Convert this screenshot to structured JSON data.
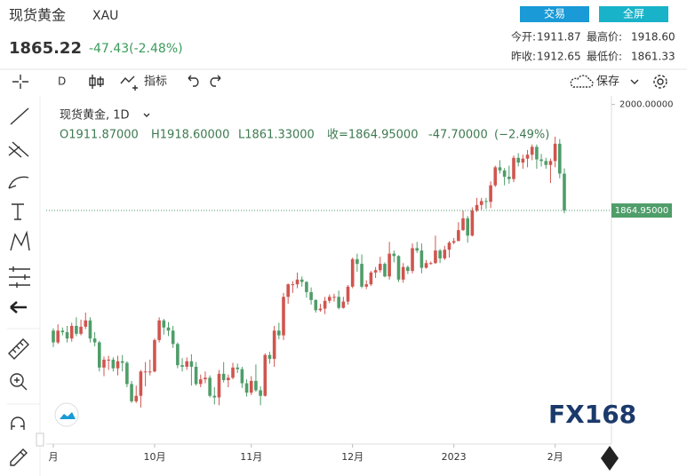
{
  "header": {
    "name": "现货黄金",
    "symbol": "XAU",
    "price": "1865.22",
    "change": "-47.43(-2.48%)",
    "buttons": [
      "交易",
      "全屏"
    ],
    "stats": [
      {
        "label": "今开:",
        "value": "1911.87"
      },
      {
        "label": "最高价:",
        "value": "1918.60"
      },
      {
        "label": "昨收:",
        "value": "1912.65"
      },
      {
        "label": "最低价:",
        "value": "1861.33"
      }
    ]
  },
  "toolbar": {
    "interval": "D",
    "indicators": "指标",
    "save": "保存"
  },
  "chart_data": {
    "type": "candlestick",
    "legend_title": "现货黄金, 1D",
    "legend_values": [
      "O1911.87000",
      "H1918.60000",
      "L1861.33000",
      "收=1864.95000",
      "-47.70000",
      "(−2.49%)"
    ],
    "watermark": "FX168",
    "categories": [
      "月",
      null,
      null,
      null,
      null,
      null,
      null,
      null,
      null,
      null,
      null,
      null,
      null,
      null,
      null,
      null,
      null,
      null,
      null,
      null,
      null,
      null,
      "10月",
      null,
      null,
      null,
      null,
      null,
      null,
      null,
      null,
      null,
      null,
      null,
      null,
      null,
      null,
      null,
      null,
      null,
      null,
      null,
      null,
      "11月",
      null,
      null,
      null,
      null,
      null,
      null,
      null,
      null,
      null,
      null,
      null,
      null,
      null,
      null,
      null,
      null,
      null,
      null,
      null,
      null,
      null,
      "12月",
      null,
      null,
      null,
      null,
      null,
      null,
      null,
      null,
      null,
      null,
      null,
      null,
      null,
      null,
      null,
      null,
      null,
      null,
      null,
      null,
      null,
      "2023",
      null,
      null,
      null,
      null,
      null,
      null,
      null,
      null,
      null,
      null,
      null,
      null,
      null,
      null,
      null,
      null,
      null,
      null,
      null,
      null,
      null,
      "2月",
      null,
      null
    ],
    "open": [
      1712,
      1697,
      1712,
      1710,
      1702,
      1718,
      1708,
      1717,
      1725,
      1702,
      1697,
      1665,
      1675,
      1675,
      1664,
      1673,
      1671,
      1644,
      1622,
      1629,
      1660,
      1660,
      1660,
      1700,
      1725,
      1716,
      1712,
      1695,
      1668,
      1666,
      1673,
      1666,
      1644,
      1650,
      1652,
      1629,
      1627,
      1657,
      1649,
      1652,
      1665,
      1663,
      1645,
      1633,
      1648,
      1636,
      1629,
      1681,
      1676,
      1712,
      1706,
      1755,
      1771,
      1771,
      1777,
      1774,
      1761,
      1751,
      1738,
      1740,
      1750,
      1755,
      1755,
      1741,
      1749,
      1768,
      1803,
      1797,
      1768,
      1771,
      1786,
      1789,
      1797,
      1781,
      1810,
      1807,
      1777,
      1793,
      1788,
      1817,
      1814,
      1792,
      1798,
      1798,
      1814,
      1804,
      1815,
      1824,
      1826,
      1840,
      1855,
      1833,
      1865,
      1872,
      1877,
      1876,
      1897,
      1920,
      1916,
      1908,
      1905,
      1932,
      1926,
      1931,
      1936,
      1946,
      1930,
      1928,
      1923,
      1928,
      1950,
      1911.87
    ],
    "high": [
      1715,
      1720,
      1716,
      1718,
      1722,
      1729,
      1726,
      1735,
      1729,
      1710,
      1699,
      1679,
      1680,
      1678,
      1680,
      1681,
      1673,
      1648,
      1642,
      1662,
      1672,
      1675,
      1702,
      1729,
      1727,
      1723,
      1718,
      1697,
      1677,
      1678,
      1682,
      1672,
      1656,
      1660,
      1655,
      1640,
      1662,
      1672,
      1656,
      1671,
      1670,
      1666,
      1650,
      1654,
      1669,
      1641,
      1683,
      1685,
      1718,
      1722,
      1760,
      1772,
      1775,
      1786,
      1781,
      1775,
      1767,
      1752,
      1746,
      1755,
      1758,
      1759,
      1763,
      1755,
      1770,
      1805,
      1810,
      1809,
      1776,
      1788,
      1793,
      1806,
      1799,
      1825,
      1814,
      1808,
      1798,
      1795,
      1823,
      1825,
      1823,
      1802,
      1800,
      1833,
      1816,
      1820,
      1826,
      1830,
      1850,
      1865,
      1858,
      1869,
      1881,
      1881,
      1881,
      1902,
      1922,
      1929,
      1919,
      1922,
      1935,
      1938,
      1936,
      1942,
      1949,
      1949,
      1937,
      1932,
      1931,
      1959,
      1956,
      1918.6
    ],
    "low": [
      1691,
      1695,
      1706,
      1697,
      1698,
      1705,
      1706,
      1714,
      1697,
      1692,
      1660,
      1654,
      1662,
      1660,
      1655,
      1660,
      1640,
      1620,
      1620,
      1614,
      1641,
      1655,
      1659,
      1697,
      1707,
      1705,
      1690,
      1664,
      1660,
      1662,
      1642,
      1642,
      1640,
      1645,
      1627,
      1618,
      1617,
      1646,
      1640,
      1650,
      1658,
      1639,
      1628,
      1630,
      1634,
      1617,
      1628,
      1670,
      1666,
      1701,
      1700,
      1746,
      1760,
      1766,
      1768,
      1754,
      1745,
      1735,
      1736,
      1733,
      1747,
      1749,
      1739,
      1740,
      1745,
      1766,
      1787,
      1766,
      1765,
      1769,
      1779,
      1786,
      1780,
      1777,
      1799,
      1774,
      1773,
      1784,
      1785,
      1811,
      1785,
      1791,
      1796,
      1797,
      1798,
      1802,
      1805,
      1822,
      1826,
      1839,
      1824,
      1832,
      1863,
      1866,
      1867,
      1868,
      1895,
      1912,
      1897,
      1899,
      1901,
      1921,
      1918,
      1920,
      1929,
      1918,
      1921,
      1918,
      1900,
      1920,
      1906,
      1861.33
    ],
    "close": [
      1697,
      1712,
      1710,
      1702,
      1718,
      1708,
      1717,
      1725,
      1702,
      1697,
      1665,
      1675,
      1675,
      1664,
      1673,
      1671,
      1644,
      1622,
      1629,
      1660,
      1660,
      1660,
      1700,
      1725,
      1716,
      1712,
      1695,
      1668,
      1666,
      1673,
      1666,
      1644,
      1650,
      1652,
      1629,
      1627,
      1657,
      1649,
      1652,
      1665,
      1663,
      1645,
      1633,
      1648,
      1636,
      1629,
      1681,
      1676,
      1712,
      1706,
      1755,
      1771,
      1771,
      1777,
      1774,
      1761,
      1751,
      1738,
      1740,
      1750,
      1755,
      1755,
      1741,
      1749,
      1768,
      1803,
      1797,
      1768,
      1771,
      1786,
      1789,
      1797,
      1781,
      1810,
      1807,
      1777,
      1793,
      1788,
      1817,
      1814,
      1792,
      1798,
      1798,
      1814,
      1804,
      1815,
      1824,
      1826,
      1840,
      1855,
      1833,
      1865,
      1872,
      1877,
      1876,
      1897,
      1920,
      1916,
      1908,
      1905,
      1932,
      1926,
      1931,
      1936,
      1946,
      1930,
      1928,
      1923,
      1928,
      1950,
      1912,
      1864.95
    ],
    "up_color": "#d0554f",
    "down_color": "#4f9d69",
    "price_line": {
      "value": 1864.95,
      "label": "1864.95000"
    },
    "ylim": [
      1571,
      2012
    ],
    "yticks": [
      {
        "value": 2000,
        "label": "2000.00000"
      }
    ]
  }
}
